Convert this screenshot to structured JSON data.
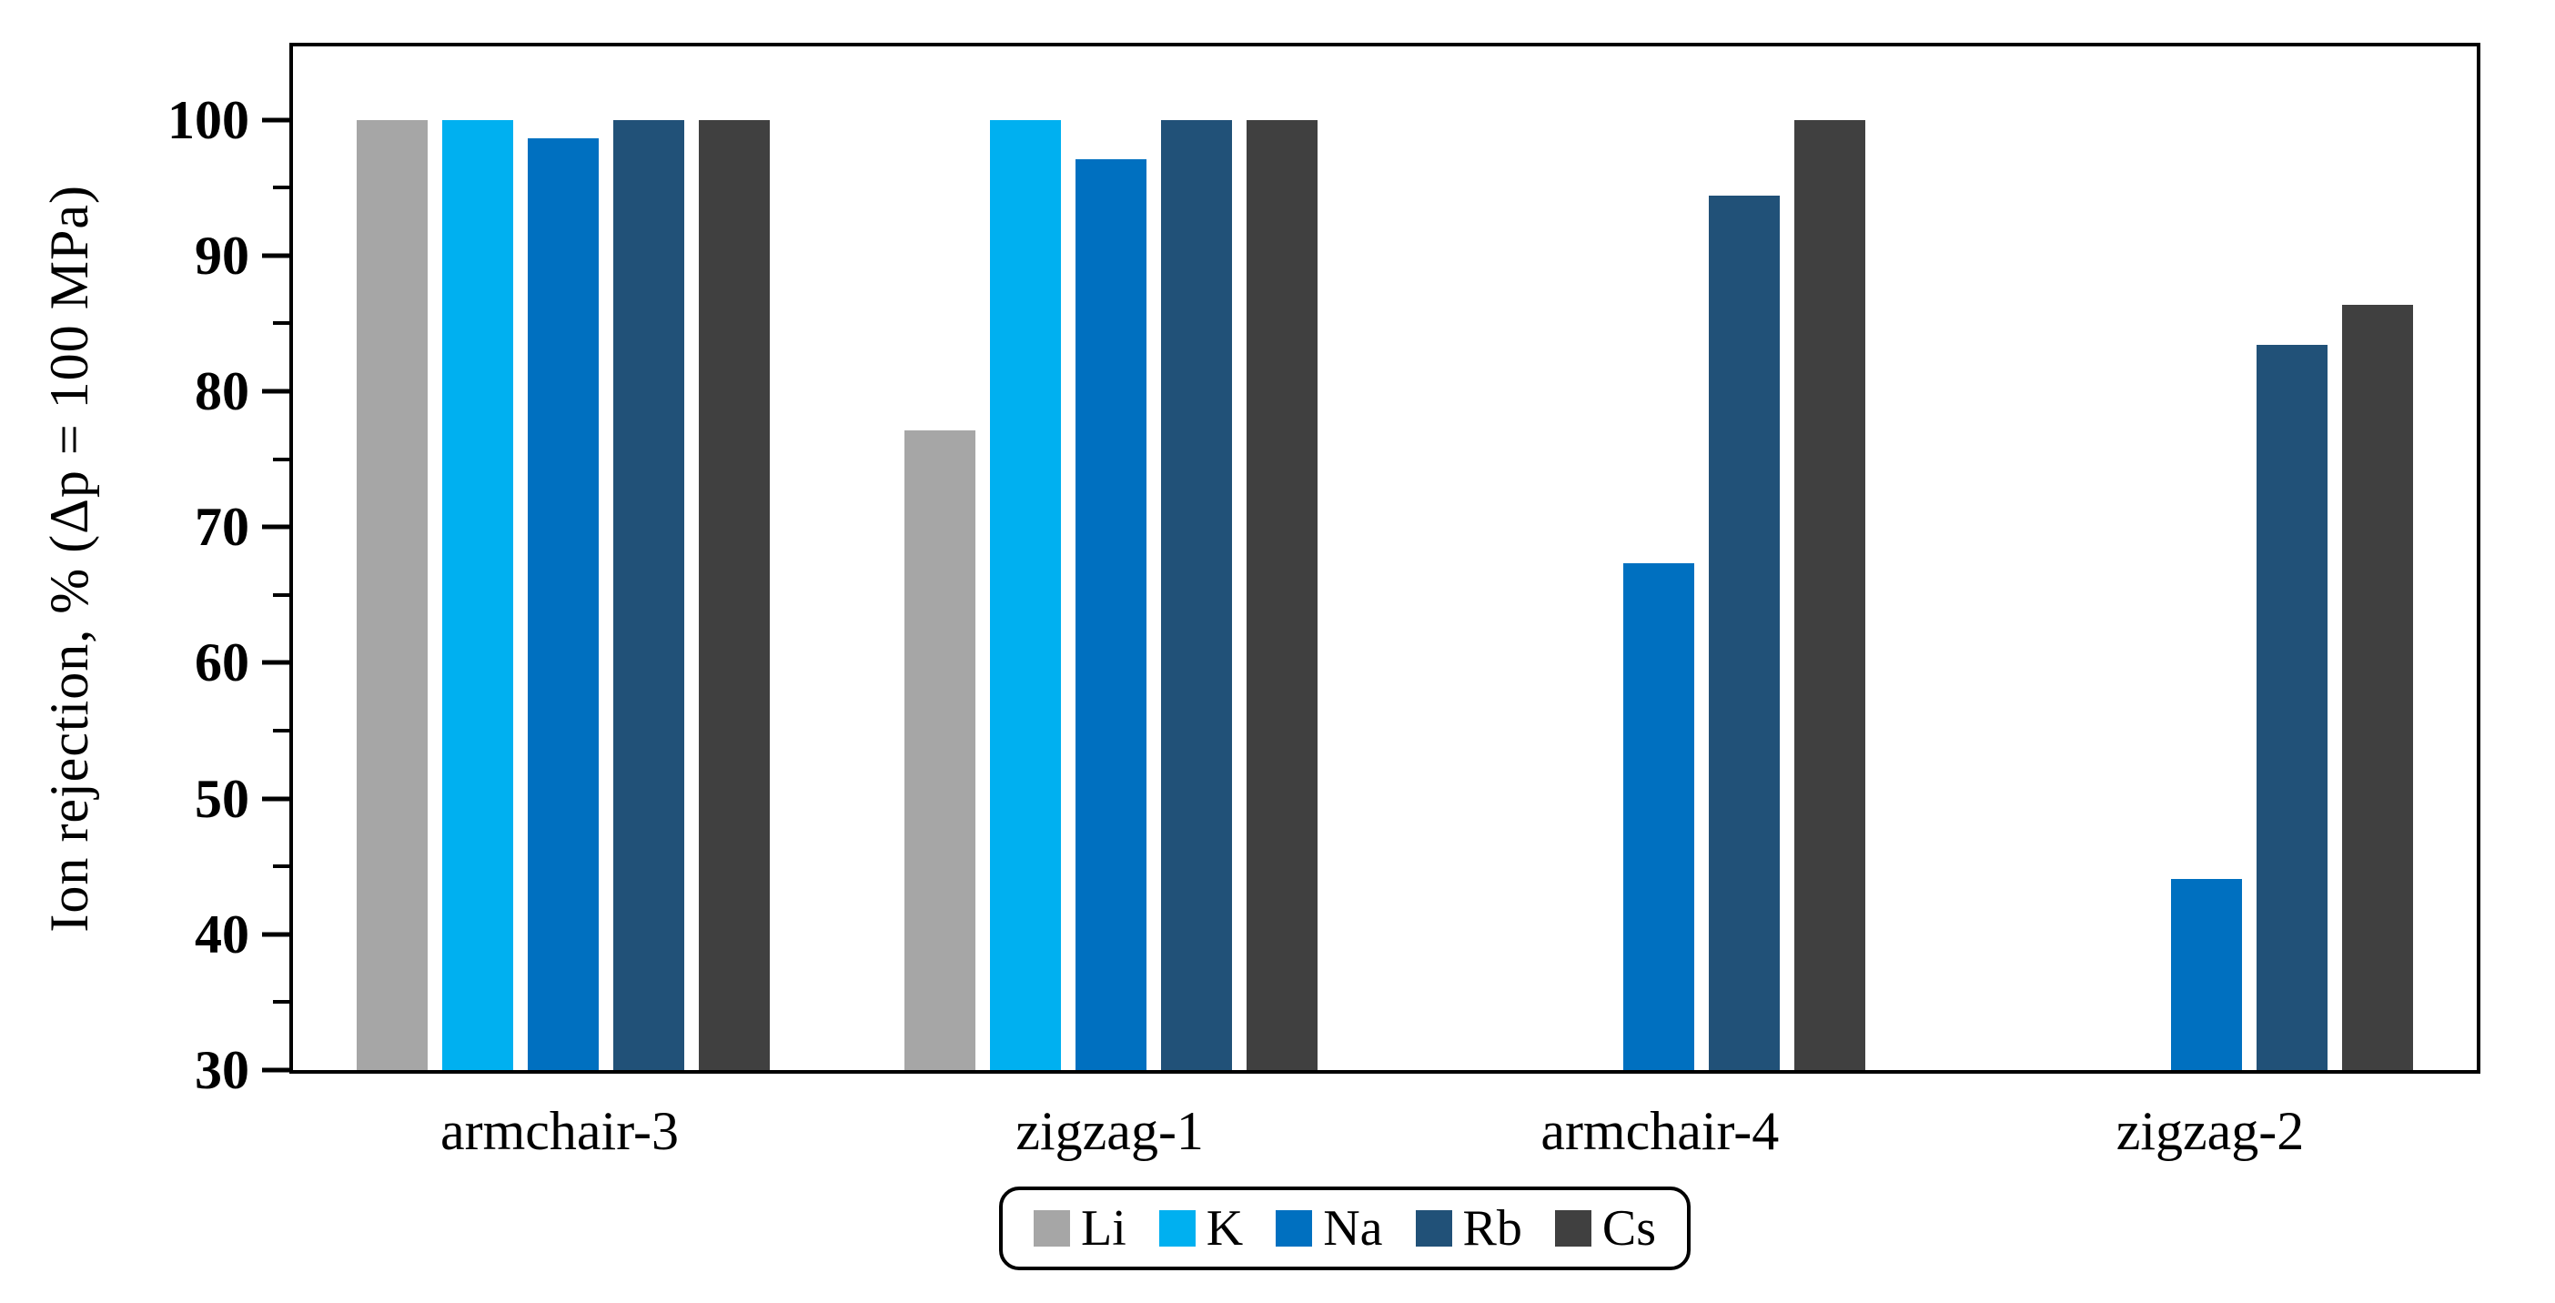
{
  "figure": {
    "background": "#ffffff",
    "y_axis_title": "Ion rejection, % (Δp = 100 MPa)"
  },
  "chart_data": {
    "type": "bar",
    "title": "",
    "xlabel": "",
    "ylabel": "Ion rejection, % (Δp = 100 MPa)",
    "ylim": [
      30,
      105.4
    ],
    "yticks_major": [
      30,
      40,
      50,
      60,
      70,
      80,
      90,
      100
    ],
    "yticks_minor": [
      35,
      45,
      55,
      65,
      75,
      85,
      95
    ],
    "grid": false,
    "legend_position": "bottom-center",
    "axis_color": "#000000",
    "categories": [
      "armchair-3",
      "zigzag-1",
      "armchair-4",
      "zigzag-2"
    ],
    "series": [
      {
        "name": "Li",
        "color": "#A6A6A6",
        "values": [
          100,
          77.1,
          null,
          null
        ]
      },
      {
        "name": "K",
        "color": "#00B0F0",
        "values": [
          100,
          100,
          null,
          null
        ]
      },
      {
        "name": "Na",
        "color": "#0070C0",
        "values": [
          98.6,
          97.1,
          67.3,
          44.1
        ]
      },
      {
        "name": "Rb",
        "color": "#215178",
        "values": [
          100,
          100,
          94.4,
          83.4
        ]
      },
      {
        "name": "Cs",
        "color": "#404040",
        "values": [
          100,
          100,
          100,
          86.4
        ]
      }
    ]
  }
}
